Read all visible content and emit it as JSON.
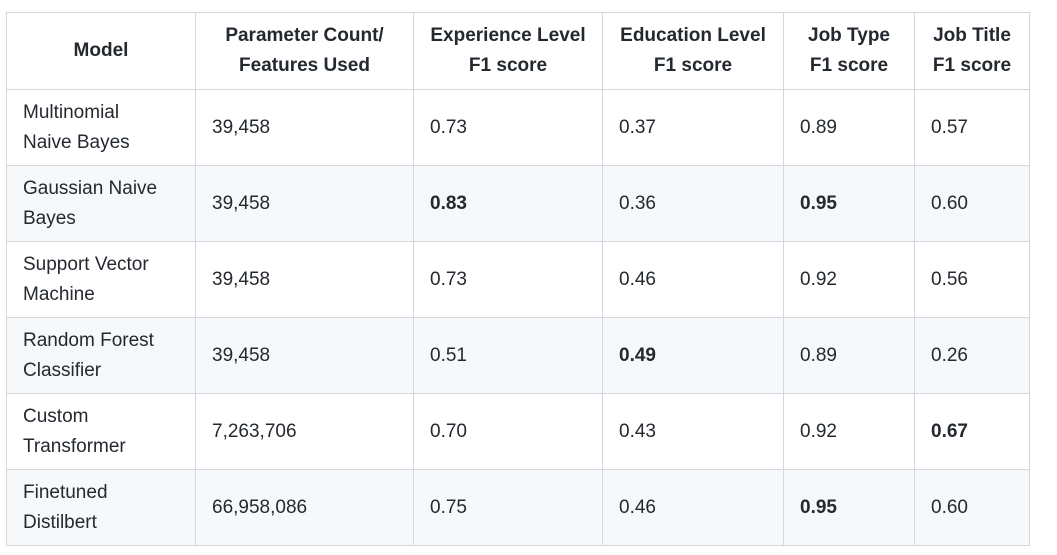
{
  "table": {
    "headers": [
      {
        "line1": "Model",
        "line2": ""
      },
      {
        "line1": "Parameter Count/",
        "line2": "Features Used"
      },
      {
        "line1": "Experience Level",
        "line2": "F1 score"
      },
      {
        "line1": "Education Level",
        "line2": "F1 score"
      },
      {
        "line1": "Job Type",
        "line2": "F1 score"
      },
      {
        "line1": "Job Title",
        "line2": "F1 score"
      }
    ],
    "rows": [
      {
        "model_line1": "Multinomial",
        "model_line2": "Naive Bayes",
        "params": "39,458",
        "experience": "0.73",
        "education": "0.37",
        "job_type": "0.89",
        "job_title": "0.57"
      },
      {
        "model_line1": "Gaussian Naive",
        "model_line2": "Bayes",
        "params": "39,458",
        "experience": "0.83",
        "education": "0.36",
        "job_type": "0.95",
        "job_title": "0.60"
      },
      {
        "model_line1": "Support Vector",
        "model_line2": "Machine",
        "params": "39,458",
        "experience": "0.73",
        "education": "0.46",
        "job_type": "0.92",
        "job_title": "0.56"
      },
      {
        "model_line1": "Random Forest",
        "model_line2": "Classifier",
        "params": "39,458",
        "experience": "0.51",
        "education": "0.49",
        "job_type": "0.89",
        "job_title": "0.26"
      },
      {
        "model_line1": "Custom",
        "model_line2": "Transformer",
        "params": "7,263,706",
        "experience": "0.70",
        "education": "0.43",
        "job_type": "0.92",
        "job_title": "0.67"
      },
      {
        "model_line1": "Finetuned",
        "model_line2": "Distilbert",
        "params": "66,958,086",
        "experience": "0.75",
        "education": "0.46",
        "job_type": "0.95",
        "job_title": "0.60"
      }
    ]
  }
}
